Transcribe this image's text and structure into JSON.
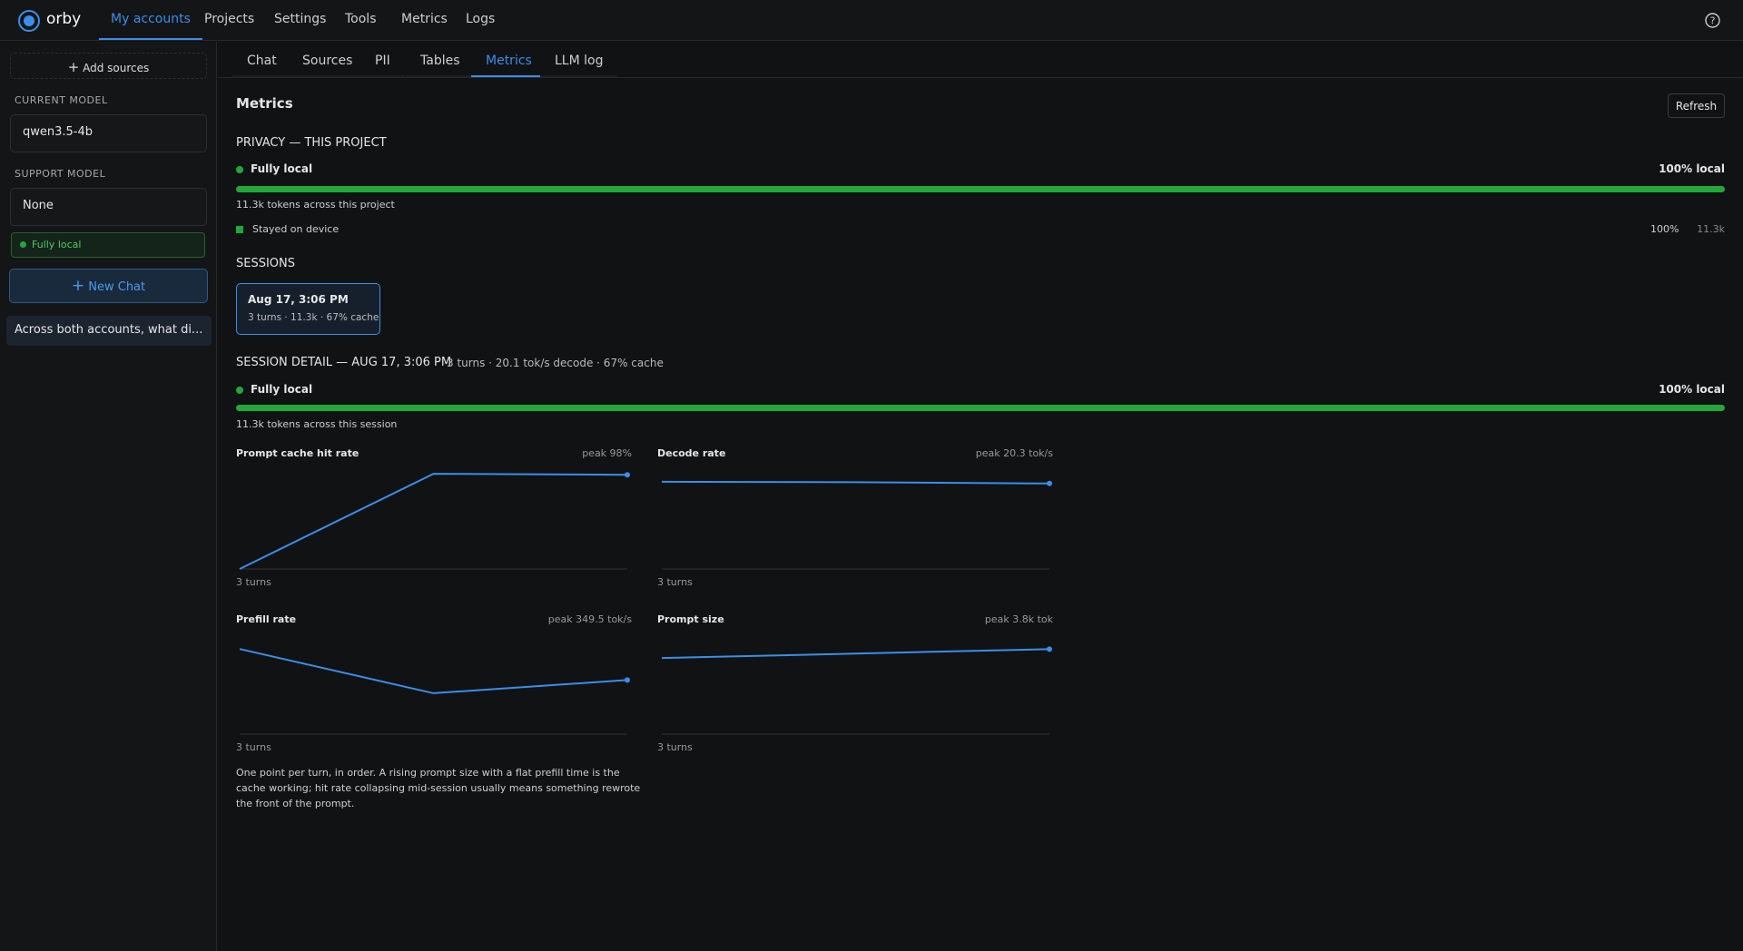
{
  "nav": {
    "brand": "orby",
    "items": [
      "My accounts",
      "Projects",
      "Settings",
      "Tools",
      "Metrics",
      "Logs"
    ],
    "active": 0
  },
  "sidebar": {
    "add_sources": "Add sources",
    "current_model_label": "CURRENT MODEL",
    "current_model": "qwen3.5-4b",
    "support_model_label": "SUPPORT MODEL",
    "support_model": "None",
    "badge": "Fully local",
    "new_chat": "New Chat",
    "chats": [
      "Across both accounts, what di..."
    ]
  },
  "tabs": {
    "items": [
      "Chat",
      "Sources",
      "PII",
      "Tables",
      "Metrics",
      "LLM log"
    ],
    "active": 4
  },
  "page_title": "Metrics",
  "refresh": "Refresh",
  "privacy": {
    "heading": "PRIVACY — THIS PROJECT",
    "status": "Fully local",
    "local_value": 100,
    "local_label": "100% local",
    "tokens_text": "11.3k tokens across this project",
    "breakdown": [
      {
        "name": "Stayed on device",
        "pct": "100%",
        "tokens": "11.3k"
      }
    ]
  },
  "sessions": {
    "heading": "SESSIONS",
    "items": [
      {
        "title": "Aug 17, 3:06 PM",
        "meta": "3 turns · 11.3k · 67% cache"
      }
    ]
  },
  "detail": {
    "heading": "SESSION DETAIL — AUG 17, 3:06 PM",
    "summary": "3 turns · 20.1 tok/s decode · 67% cache",
    "status": "Fully local",
    "local_value": 100,
    "local_label": "100% local",
    "tokens_text": "11.3k tokens across this session"
  },
  "charts": [
    {
      "type": "line",
      "title": "Prompt cache hit rate",
      "peak_label": "peak 98%",
      "x_label": "3 turns",
      "values": [
        0,
        98,
        97
      ],
      "ylim": [
        0,
        100
      ],
      "color": "#3b8eea"
    },
    {
      "type": "line",
      "title": "Decode rate",
      "peak_label": "peak 20.3 tok/s",
      "x_label": "3 turns",
      "values": [
        20.3,
        20.2,
        19.9
      ],
      "ylim": [
        0,
        22.6
      ],
      "color": "#3b8eea"
    },
    {
      "type": "line",
      "title": "Prefill rate",
      "peak_label": "peak 349.5 tok/s",
      "x_label": "3 turns",
      "values": [
        349.5,
        168,
        222
      ],
      "ylim": [
        0,
        395
      ],
      "color": "#3b8eea"
    },
    {
      "type": "line",
      "title": "Prompt size",
      "peak_label": "peak 3.8k tok",
      "x_label": "3 turns",
      "values": [
        3400,
        3600,
        3800
      ],
      "ylim": [
        0,
        4300
      ],
      "color": "#3b8eea"
    }
  ],
  "footnote": "One point per turn, in order. A rising prompt size with a flat prefill time is the cache working; hit rate collapsing mid-session usually means something rewrote the front of the prompt."
}
